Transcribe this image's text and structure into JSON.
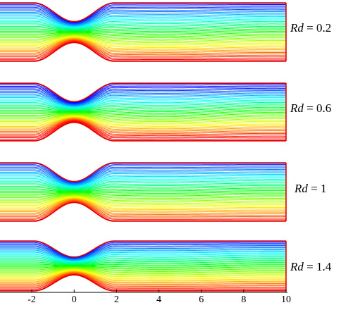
{
  "panels": [
    {
      "label_var": "Rd",
      "label_eq": "= 0.2"
    },
    {
      "label_var": "Rd",
      "label_eq": "= 0.6"
    },
    {
      "label_var": "Rd",
      "label_eq": "= 1"
    },
    {
      "label_var": "Rd",
      "label_eq": "= 1.4"
    }
  ],
  "x_axis": {
    "ticks": [
      "-2",
      "0",
      "2",
      "4",
      "6",
      "8",
      "10"
    ],
    "range": [
      -3.5,
      10
    ]
  },
  "colors": {
    "wall": "#e00000",
    "colormap": [
      "#0000ff",
      "#00ffff",
      "#00ff00",
      "#ffff00",
      "#ff0000"
    ]
  }
}
